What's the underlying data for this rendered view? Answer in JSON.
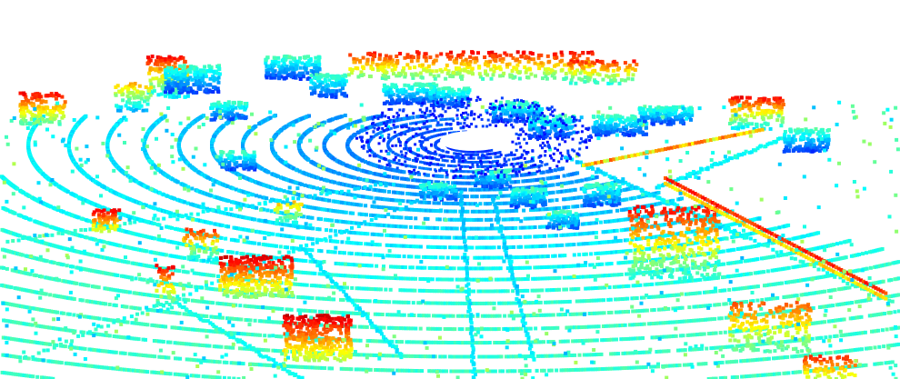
{
  "view": {
    "kind": "lidar-point-cloud",
    "background": "#ffffff",
    "colormap": "jet",
    "colormap_stops": [
      "#00007f",
      "#0000ff",
      "#007fff",
      "#00ffff",
      "#7fff7f",
      "#ffff00",
      "#ff7f00",
      "#ff0000",
      "#7f0000"
    ],
    "coloring": "height"
  },
  "features": [
    "ground-rings",
    "road-edges",
    "vehicles",
    "buildings",
    "trees",
    "ego-vehicle-gap"
  ]
}
